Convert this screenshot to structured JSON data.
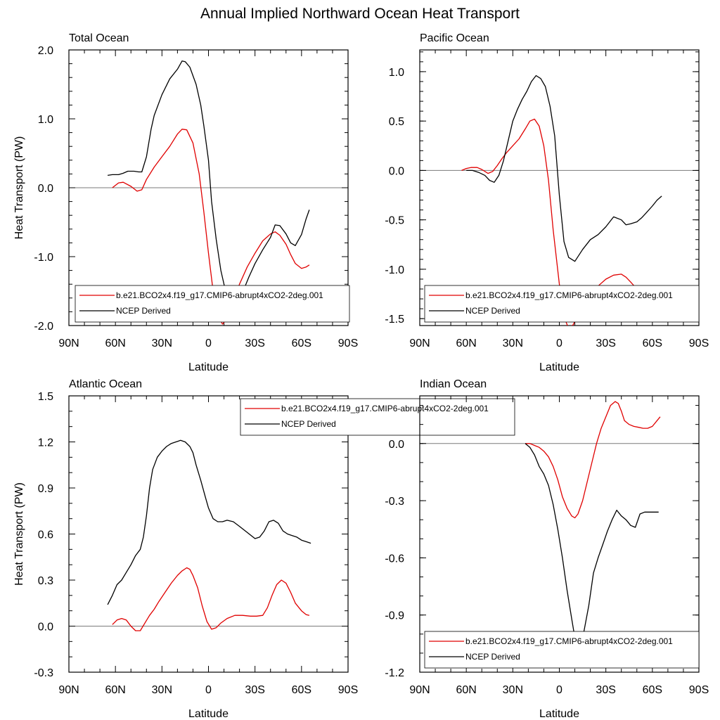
{
  "title": "Annual Implied Northward Ocean Heat Transport",
  "chart_data": [
    {
      "type": "line",
      "title": "Total Ocean",
      "xlabel": "Latitude",
      "ylabel": "Heat Transport (PW)",
      "xlim": [
        90,
        -90
      ],
      "ylim": [
        -2.0,
        2.0
      ],
      "yticks": [
        -2.0,
        -1.0,
        0.0,
        1.0,
        2.0
      ],
      "ytick_labels": [
        "-2.0",
        "-1.0",
        "0.0",
        "1.0",
        "2.0"
      ],
      "yminor_step": 0.2,
      "xticks": [
        90,
        60,
        30,
        0,
        -30,
        -60,
        -90
      ],
      "xtick_labels": [
        "90N",
        "60N",
        "30N",
        "0",
        "30S",
        "60S",
        "90S"
      ],
      "zero_line": true,
      "legend": "bottom",
      "series": [
        {
          "name": "b.e21.BCO2x4.f19_g17.CMIP6-abrupt4xCO2-2deg.001",
          "color": "#e00000",
          "x": [
            62,
            58,
            55,
            50,
            46,
            43,
            40,
            35,
            30,
            25,
            20,
            17,
            14,
            10,
            6,
            3,
            0,
            -3,
            -6,
            -9,
            -12,
            -15,
            -20,
            -25,
            -30,
            -35,
            -40,
            -43,
            -46,
            -50,
            -53,
            -56,
            -60,
            -63,
            -65
          ],
          "y": [
            0.0,
            0.07,
            0.08,
            0.02,
            -0.05,
            -0.03,
            0.12,
            0.3,
            0.45,
            0.6,
            0.78,
            0.85,
            0.84,
            0.65,
            0.2,
            -0.35,
            -0.95,
            -1.5,
            -1.85,
            -1.98,
            -1.9,
            -1.7,
            -1.4,
            -1.15,
            -0.95,
            -0.77,
            -0.67,
            -0.64,
            -0.69,
            -0.82,
            -0.97,
            -1.1,
            -1.17,
            -1.15,
            -1.12
          ]
        },
        {
          "name": "NCEP Derived",
          "color": "#000000",
          "x": [
            65,
            62,
            58,
            55,
            52,
            48,
            45,
            43,
            40,
            37,
            35,
            30,
            25,
            20,
            17,
            15,
            12,
            8,
            5,
            3,
            0,
            -2,
            -5,
            -8,
            -11,
            -14,
            -18,
            -22,
            -26,
            -30,
            -35,
            -40,
            -43,
            -46,
            -50,
            -53,
            -56,
            -60,
            -63,
            -65
          ],
          "y": [
            0.18,
            0.19,
            0.19,
            0.21,
            0.24,
            0.24,
            0.23,
            0.23,
            0.45,
            0.85,
            1.05,
            1.35,
            1.58,
            1.72,
            1.84,
            1.83,
            1.75,
            1.5,
            1.2,
            0.9,
            0.4,
            -0.2,
            -0.75,
            -1.2,
            -1.5,
            -1.65,
            -1.67,
            -1.52,
            -1.3,
            -1.1,
            -0.9,
            -0.72,
            -0.54,
            -0.55,
            -0.67,
            -0.8,
            -0.84,
            -0.68,
            -0.45,
            -0.32
          ]
        }
      ]
    },
    {
      "type": "line",
      "title": "Pacific Ocean",
      "xlabel": "Latitude",
      "ylabel": "",
      "xlim": [
        90,
        -90
      ],
      "ylim": [
        -1.57,
        1.22
      ],
      "yticks": [
        -1.5,
        -1.0,
        -0.5,
        0.0,
        0.5,
        1.0
      ],
      "ytick_labels": [
        "-1.5",
        "-1.0",
        "-0.5",
        "0.0",
        "0.5",
        "1.0"
      ],
      "yminor_step": 0.1,
      "xticks": [
        90,
        60,
        30,
        0,
        -30,
        -60,
        -90
      ],
      "xtick_labels": [
        "90N",
        "60N",
        "30N",
        "0",
        "30S",
        "60S",
        "90S"
      ],
      "zero_line": true,
      "legend": "bottom",
      "series": [
        {
          "name": "b.e21.BCO2x4.f19_g17.CMIP6-abrupt4xCO2-2deg.001",
          "color": "#e00000",
          "x": [
            63,
            60,
            57,
            53,
            50,
            46,
            43,
            40,
            37,
            34,
            30,
            26,
            22,
            19,
            16,
            13,
            10,
            7,
            4,
            0,
            -3,
            -6,
            -9,
            -12,
            -16,
            -20,
            -25,
            -30,
            -35,
            -40,
            -43,
            -46,
            -50,
            -53,
            -56,
            -60,
            -63
          ],
          "y": [
            0.0,
            0.02,
            0.03,
            0.03,
            0.01,
            -0.03,
            -0.01,
            0.05,
            0.12,
            0.18,
            0.25,
            0.32,
            0.42,
            0.5,
            0.52,
            0.45,
            0.25,
            -0.1,
            -0.6,
            -1.15,
            -1.48,
            -1.6,
            -1.56,
            -1.45,
            -1.33,
            -1.25,
            -1.17,
            -1.1,
            -1.06,
            -1.05,
            -1.08,
            -1.13,
            -1.2,
            -1.26,
            -1.3,
            -1.3,
            -1.28
          ]
        },
        {
          "name": "NCEP Derived",
          "color": "#000000",
          "x": [
            60,
            56,
            52,
            48,
            45,
            42,
            39,
            36,
            33,
            30,
            27,
            24,
            21,
            18,
            15,
            12,
            9,
            6,
            3,
            0,
            -3,
            -6,
            -10,
            -15,
            -20,
            -25,
            -30,
            -35,
            -40,
            -43,
            -46,
            -50,
            -53,
            -56,
            -60,
            -63,
            -66
          ],
          "y": [
            0.0,
            0.0,
            -0.02,
            -0.05,
            -0.1,
            -0.12,
            -0.05,
            0.1,
            0.3,
            0.5,
            0.62,
            0.72,
            0.8,
            0.9,
            0.96,
            0.93,
            0.85,
            0.65,
            0.35,
            -0.25,
            -0.72,
            -0.88,
            -0.92,
            -0.8,
            -0.7,
            -0.65,
            -0.57,
            -0.47,
            -0.5,
            -0.55,
            -0.54,
            -0.52,
            -0.48,
            -0.43,
            -0.36,
            -0.3,
            -0.26
          ]
        }
      ]
    },
    {
      "type": "line",
      "title": "Atlantic Ocean",
      "xlabel": "Latitude",
      "ylabel": "Heat Transport (PW)",
      "xlim": [
        90,
        -90
      ],
      "ylim": [
        -0.3,
        1.5
      ],
      "yticks": [
        -0.3,
        0.0,
        0.3,
        0.6,
        0.9,
        1.2,
        1.5
      ],
      "ytick_labels": [
        "-0.3",
        "0.0",
        "0.3",
        "0.6",
        "0.9",
        "1.2",
        "1.5"
      ],
      "yminor_step": 0.1,
      "xticks": [
        90,
        60,
        30,
        0,
        -30,
        -60,
        -90
      ],
      "xtick_labels": [
        "90N",
        "60N",
        "30N",
        "0",
        "30S",
        "60S",
        "90S"
      ],
      "zero_line": true,
      "legend": "top-right",
      "series": [
        {
          "name": "b.e21.BCO2x4.f19_g17.CMIP6-abrupt4xCO2-2deg.001",
          "color": "#e00000",
          "x": [
            62,
            59,
            56,
            53,
            50,
            47,
            44,
            41,
            38,
            35,
            32,
            28,
            24,
            20,
            17,
            14,
            12,
            10,
            7,
            4,
            1,
            -2,
            -5,
            -8,
            -12,
            -17,
            -22,
            -27,
            -31,
            -35,
            -38,
            -41,
            -44,
            -47,
            -50,
            -53,
            -56,
            -60,
            -63,
            -65
          ],
          "y": [
            0.01,
            0.04,
            0.05,
            0.04,
            0.0,
            -0.03,
            -0.03,
            0.02,
            0.07,
            0.11,
            0.16,
            0.22,
            0.28,
            0.33,
            0.36,
            0.38,
            0.37,
            0.33,
            0.25,
            0.13,
            0.03,
            -0.02,
            -0.01,
            0.02,
            0.05,
            0.07,
            0.07,
            0.065,
            0.065,
            0.07,
            0.12,
            0.2,
            0.27,
            0.3,
            0.28,
            0.22,
            0.15,
            0.1,
            0.075,
            0.07
          ]
        },
        {
          "name": "NCEP Derived",
          "color": "#000000",
          "x": [
            65,
            62,
            59,
            56,
            53,
            50,
            47,
            44,
            42,
            40,
            38,
            36,
            33,
            30,
            27,
            24,
            21,
            18,
            15,
            12,
            10,
            8,
            5,
            2,
            0,
            -3,
            -6,
            -9,
            -12,
            -16,
            -20,
            -25,
            -30,
            -33,
            -36,
            -39,
            -42,
            -45,
            -48,
            -51,
            -54,
            -57,
            -60,
            -63,
            -66
          ],
          "y": [
            0.14,
            0.2,
            0.27,
            0.3,
            0.35,
            0.4,
            0.46,
            0.5,
            0.58,
            0.72,
            0.9,
            1.02,
            1.1,
            1.14,
            1.17,
            1.19,
            1.2,
            1.21,
            1.2,
            1.17,
            1.13,
            1.05,
            0.95,
            0.84,
            0.77,
            0.7,
            0.68,
            0.68,
            0.69,
            0.68,
            0.65,
            0.61,
            0.57,
            0.58,
            0.62,
            0.68,
            0.69,
            0.67,
            0.62,
            0.6,
            0.59,
            0.58,
            0.56,
            0.55,
            0.54
          ]
        }
      ]
    },
    {
      "type": "line",
      "title": "Indian Ocean",
      "xlabel": "Latitude",
      "ylabel": "",
      "xlim": [
        90,
        -90
      ],
      "ylim": [
        -1.2,
        0.25
      ],
      "yticks": [
        -1.2,
        -0.9,
        -0.6,
        -0.3,
        0.0
      ],
      "ytick_labels": [
        "-1.2",
        "-0.9",
        "-0.6",
        "-0.3",
        "0.0"
      ],
      "yminor_step": 0.1,
      "xticks": [
        90,
        60,
        30,
        0,
        -30,
        -60,
        -90
      ],
      "xtick_labels": [
        "90N",
        "60N",
        "30N",
        "0",
        "30S",
        "60S",
        "90S"
      ],
      "zero_line": true,
      "legend": "bottom",
      "series": [
        {
          "name": "b.e21.BCO2x4.f19_g17.CMIP6-abrupt4xCO2-2deg.001",
          "color": "#e00000",
          "x": [
            22,
            19,
            16,
            13,
            10,
            7,
            4,
            1,
            -2,
            -5,
            -8,
            -10,
            -12,
            -15,
            -18,
            -21,
            -24,
            -27,
            -30,
            -33,
            -36,
            -38,
            -40,
            -42,
            -45,
            -48,
            -51,
            -54,
            -57,
            -60,
            -63,
            -65
          ],
          "y": [
            0.0,
            0.0,
            -0.01,
            -0.02,
            -0.04,
            -0.07,
            -0.12,
            -0.19,
            -0.28,
            -0.34,
            -0.38,
            -0.39,
            -0.37,
            -0.3,
            -0.2,
            -0.1,
            0.0,
            0.08,
            0.14,
            0.2,
            0.22,
            0.21,
            0.17,
            0.12,
            0.1,
            0.09,
            0.085,
            0.08,
            0.08,
            0.09,
            0.12,
            0.14
          ]
        },
        {
          "name": "NCEP Derived",
          "color": "#000000",
          "x": [
            22,
            19,
            16,
            13,
            10,
            7,
            4,
            1,
            -2,
            -5,
            -8,
            -10,
            -12,
            -14,
            -16,
            -19,
            -22,
            -25,
            -28,
            -31,
            -34,
            -37,
            -40,
            -43,
            -46,
            -49,
            -52,
            -55,
            -58,
            -61,
            -64
          ],
          "y": [
            0.0,
            -0.02,
            -0.06,
            -0.12,
            -0.16,
            -0.22,
            -0.32,
            -0.45,
            -0.6,
            -0.77,
            -0.92,
            -1.02,
            -1.05,
            -1.04,
            -0.98,
            -0.85,
            -0.68,
            -0.6,
            -0.53,
            -0.46,
            -0.4,
            -0.35,
            -0.38,
            -0.4,
            -0.43,
            -0.44,
            -0.37,
            -0.36,
            -0.36,
            -0.36,
            -0.36
          ]
        }
      ]
    }
  ]
}
